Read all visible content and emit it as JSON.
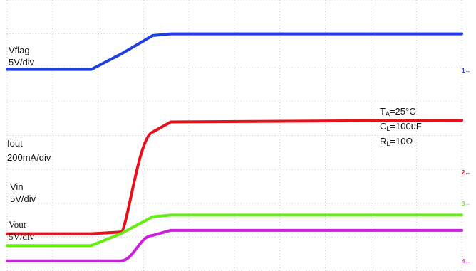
{
  "chart_data": {
    "type": "line",
    "title": "",
    "xlabel": "",
    "ylabel": "",
    "grid": true,
    "grid_divisions": {
      "x": 10,
      "y": 8
    },
    "x": [
      0,
      1.85,
      2.5,
      3.2,
      3.6,
      10
    ],
    "series": [
      {
        "name": "Vflag",
        "scale": "5V/div",
        "color": "#1f3fe0",
        "marker": "1",
        "values": [
          5.95,
          5.95,
          6.4,
          6.95,
          7.0,
          7.0
        ]
      },
      {
        "name": "Iout",
        "scale": "200mA/div",
        "color": "#e8101a",
        "marker": "2",
        "values": [
          1.1,
          1.1,
          1.15,
          4.1,
          4.4,
          4.45
        ]
      },
      {
        "name": "Vin",
        "scale": "5V/div",
        "color": "#66ee11",
        "marker": "3",
        "values": [
          0.75,
          0.75,
          1.1,
          1.6,
          1.65,
          1.65
        ]
      },
      {
        "name": "Vout",
        "scale": "5V/div",
        "color": "#cc1fdd",
        "marker": "4",
        "values": [
          0.3,
          0.3,
          0.3,
          1.05,
          1.2,
          1.2
        ]
      }
    ],
    "labels": {
      "vflag": [
        "Vflag",
        "5V/div"
      ],
      "iout": [
        "Iout",
        "200mA/div"
      ],
      "vin": [
        "Vin",
        "5V/div"
      ],
      "vout": [
        "Vout",
        "5V/div"
      ]
    },
    "conditions": {
      "ta": {
        "sym": "T",
        "sub": "A",
        "val": "=25°C"
      },
      "cl": {
        "sym": "C",
        "sub": "L",
        "val": "=100uF"
      },
      "rl": {
        "sym": "R",
        "sub": "L",
        "val": "=10Ω"
      }
    },
    "markers": [
      "1",
      "2",
      "3",
      "4"
    ]
  }
}
